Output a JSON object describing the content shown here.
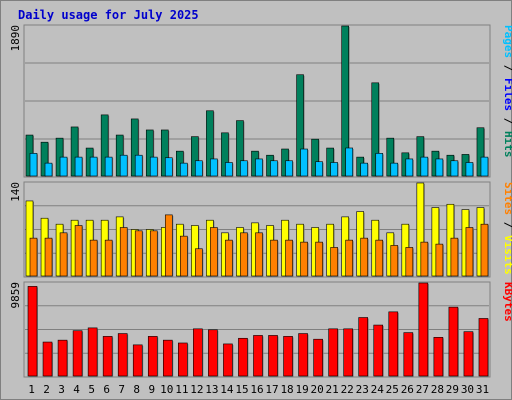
{
  "title": "Daily usage for July 2025",
  "colors": {
    "pages": "#00c0ff",
    "files": "#0000ff",
    "hits": "#00805c",
    "visits": "#ffff00",
    "sites": "#ff8000",
    "kbytes": "#ff0000",
    "weekend_day": "#00805c",
    "weekday": "#000000",
    "panel_bg": "#c0c0c0"
  },
  "labels": {
    "top_axis_max": "1890",
    "mid_axis_max": "140",
    "bot_axis_max": "9859",
    "side_top": {
      "pages": "Pages",
      "files": "Files",
      "hits": "Hits",
      "sep": " / "
    },
    "side_mid": {
      "sites": "Sites",
      "visits": "Visits",
      "sep": " / "
    },
    "side_bot": {
      "kbytes": "KBytes"
    }
  },
  "chart_data": [
    {
      "type": "bar",
      "title": "",
      "ylim": [
        0,
        1890
      ],
      "categories": [
        "1",
        "2",
        "3",
        "4",
        "5",
        "6",
        "7",
        "8",
        "9",
        "10",
        "11",
        "12",
        "13",
        "14",
        "15",
        "16",
        "17",
        "18",
        "19",
        "20",
        "21",
        "22",
        "23",
        "24",
        "25",
        "26",
        "27",
        "28",
        "29",
        "30",
        "31"
      ],
      "weekend_days": [
        "5",
        "6",
        "12",
        "13",
        "19",
        "20",
        "26",
        "27"
      ],
      "series": [
        {
          "name": "Hits",
          "values": [
            516,
            426,
            477,
            618,
            352,
            770,
            516,
            719,
            580,
            580,
            313,
            496,
            822,
            544,
            698,
            313,
            262,
            340,
            1276,
            464,
            352,
            1890,
            238,
            1174,
            477,
            292,
            496,
            313,
            262,
            272,
            608
          ]
        },
        {
          "name": "Pages",
          "values": [
            285,
            162,
            238,
            238,
            238,
            238,
            262,
            262,
            238,
            230,
            162,
            192,
            215,
            170,
            192,
            215,
            192,
            192,
            340,
            180,
            170,
            353,
            162,
            285,
            162,
            215,
            238,
            215,
            192,
            170,
            238
          ]
        }
      ]
    },
    {
      "type": "bar",
      "title": "",
      "ylim": [
        0,
        140
      ],
      "series": [
        {
          "name": "Visits",
          "values": [
            113,
            87,
            78,
            84,
            84,
            84,
            89,
            70,
            70,
            73,
            78,
            76,
            84,
            65,
            73,
            80,
            76,
            84,
            78,
            73,
            78,
            89,
            97,
            84,
            65,
            78,
            140,
            103,
            108,
            100,
            103
          ]
        },
        {
          "name": "Sites",
          "values": [
            57,
            57,
            65,
            76,
            54,
            54,
            73,
            68,
            68,
            92,
            60,
            41,
            73,
            54,
            65,
            65,
            54,
            54,
            51,
            51,
            43,
            54,
            57,
            54,
            46,
            43,
            51,
            48,
            57,
            73,
            78
          ]
        }
      ]
    },
    {
      "type": "bar",
      "title": "",
      "ylim": [
        0,
        9859
      ],
      "series": [
        {
          "name": "KBytes",
          "values": [
            9500,
            3600,
            3800,
            4800,
            5100,
            4200,
            4500,
            3300,
            4200,
            3800,
            3500,
            5000,
            4900,
            3400,
            4000,
            4300,
            4300,
            4200,
            4500,
            3900,
            5000,
            5000,
            6200,
            5400,
            6800,
            4600,
            9859,
            4100,
            7300,
            4700,
            6100
          ]
        }
      ]
    }
  ]
}
